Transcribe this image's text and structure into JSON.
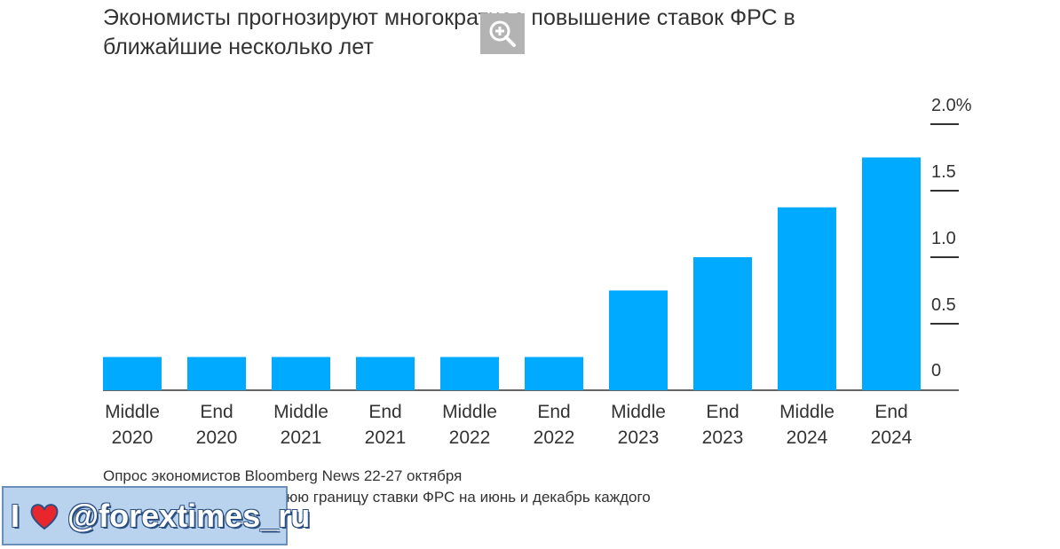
{
  "chart_data": {
    "type": "bar",
    "title": "Экономисты прогнозируют многократное повышение ставок ФРС в ближайшие несколько лет",
    "categories": [
      [
        "Middle",
        "2020"
      ],
      [
        "End",
        "2020"
      ],
      [
        "Middle",
        "2021"
      ],
      [
        "End",
        "2021"
      ],
      [
        "Middle",
        "2022"
      ],
      [
        "End",
        "2022"
      ],
      [
        "Middle",
        "2023"
      ],
      [
        "End",
        "2023"
      ],
      [
        "Middle",
        "2024"
      ],
      [
        "End",
        "2024"
      ]
    ],
    "values": [
      0.25,
      0.25,
      0.25,
      0.25,
      0.25,
      0.25,
      0.75,
      1.0,
      1.375,
      1.75
    ],
    "ylim": [
      0,
      2.0
    ],
    "yticks": [
      0,
      0.5,
      1.0,
      1.5,
      2.0
    ],
    "ytick_labels": [
      "0",
      "0.5",
      "1.0",
      "1.5",
      "2.0%"
    ],
    "y_axis_side": "right",
    "bar_color": "#00aaff",
    "grid": false,
    "source": "Опрос экономистов Bloomberg News 22-27 октября",
    "note": "ли спрогнозировать верхнюю границу ставки ФРС на июнь и декабрь каждого"
  },
  "watermark": {
    "text": "I",
    "handle": "@forextimes_ru",
    "icon": "heart-icon",
    "color": "#b9d3ee"
  },
  "zoom_icon": "zoom-in-icon"
}
